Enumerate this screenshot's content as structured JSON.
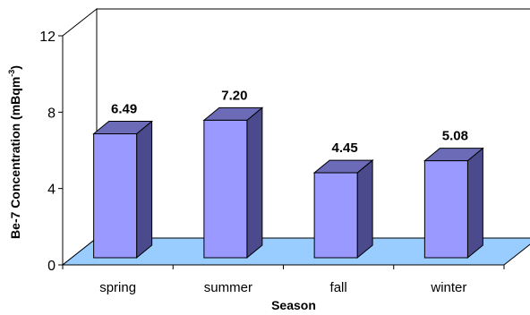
{
  "chart_data": {
    "type": "bar",
    "categories": [
      "spring",
      "summer",
      "fall",
      "winter"
    ],
    "values": [
      6.49,
      7.2,
      4.45,
      5.08
    ],
    "data_labels": [
      "6.49",
      "7.20",
      "4.45",
      "5.08"
    ],
    "xlabel": "Season",
    "ylabel": "Be-7 Concentration (mBqm",
    "ylabel_superscript": "-3",
    "ylabel_suffix": ")",
    "ylim": [
      0,
      12
    ],
    "yticks": [
      0,
      4,
      8,
      12
    ],
    "grid": false,
    "three_d": true,
    "colors": {
      "bar_front": "#9999ff",
      "bar_side": "#4a4a8c",
      "bar_top": "#6b6bb8",
      "floor": "#99ccff",
      "wall": "#ffffff"
    }
  }
}
